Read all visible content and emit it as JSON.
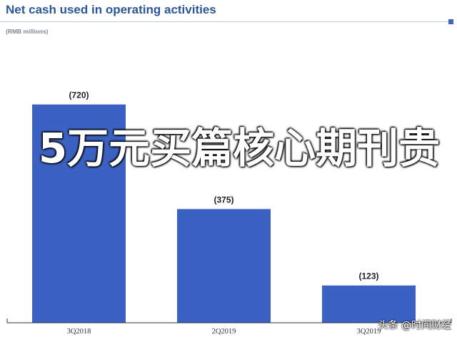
{
  "title": "Net cash used in operating activities",
  "subtitle": "(RMB millions)",
  "overlay_text": "5万元买篇核心期刊贵",
  "watermark": "头条 @时间财经",
  "colors": {
    "bar": "#3b62c2",
    "title": "#2b5699",
    "rule": "#b9cde3",
    "label": "#222222",
    "axis": "#333333"
  },
  "chart_data": {
    "type": "bar",
    "categories": [
      "3Q2018",
      "2Q2019",
      "3Q2019"
    ],
    "values": [
      720,
      375,
      123
    ],
    "data_labels": [
      "(720)",
      "(375)",
      "(123)"
    ],
    "ylim": [
      0,
      900
    ],
    "grid": false,
    "title": "Net cash used in operating activities",
    "ylabel": "(RMB millions)"
  }
}
